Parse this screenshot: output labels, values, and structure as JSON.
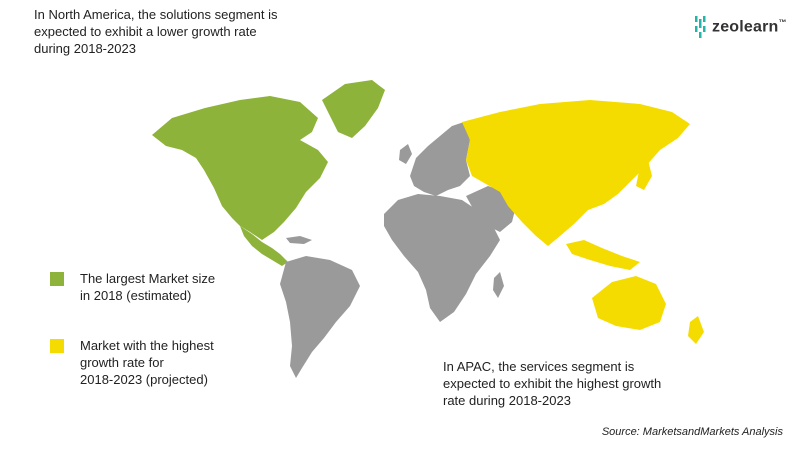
{
  "annotations": {
    "top_note": "In North America, the solutions segment is\nexpected to exhibit a lower growth rate\nduring 2018-2023",
    "bottom_note": "In APAC, the services segment is\nexpected to exhibit the highest growth\nrate during 2018-2023"
  },
  "legend": [
    {
      "label": "The largest Market size\nin 2018 (estimated)",
      "color": "#8db33a"
    },
    {
      "label": "Market with the highest\ngrowth rate for\n2018-2023 (projected)",
      "color": "#f5dc00"
    }
  ],
  "source": "Source: MarketsandMarkets Analysis",
  "logo": {
    "text": "zeolearn",
    "mark": "™",
    "accent_color": "#25b5a8"
  },
  "map": {
    "regions": [
      {
        "name": "North America",
        "category": "largest-market",
        "color": "#8db33a"
      },
      {
        "name": "APAC",
        "category": "highest-growth",
        "color": "#f5dc00"
      },
      {
        "name": "Rest of World",
        "category": "other",
        "color": "#9a9a9a"
      }
    ]
  }
}
